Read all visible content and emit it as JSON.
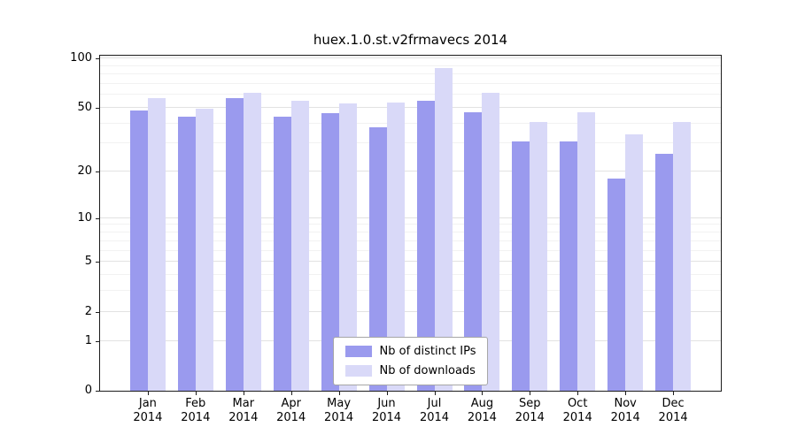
{
  "chart_data": {
    "type": "bar",
    "title": "huex.1.0.st.v2frmavecs 2014",
    "categories": [
      "Jan",
      "Feb",
      "Mar",
      "Apr",
      "May",
      "Jun",
      "Jul",
      "Aug",
      "Sep",
      "Oct",
      "Nov",
      "Dec"
    ],
    "year": "2014",
    "series": [
      {
        "name": "Nb of distinct IPs",
        "color": "#9a9aee",
        "values": [
          48,
          44,
          57,
          44,
          46,
          38,
          55,
          47,
          31,
          31,
          18,
          26
        ]
      },
      {
        "name": "Nb of downloads",
        "color": "#d9d9f8",
        "values": [
          57,
          49,
          62,
          55,
          53,
          54,
          87,
          62,
          41,
          47,
          34,
          41
        ]
      }
    ],
    "y_ticks": [
      0,
      1,
      2,
      5,
      10,
      20,
      50,
      100
    ],
    "y_minor_gridlines": [
      3,
      4,
      6,
      7,
      8,
      9,
      30,
      40,
      60,
      70,
      80,
      90
    ],
    "y_scale": "log1p",
    "ylim": [
      0,
      100
    ],
    "xlabel": "",
    "ylabel": "",
    "grid": true,
    "legend_position": "lower center"
  }
}
